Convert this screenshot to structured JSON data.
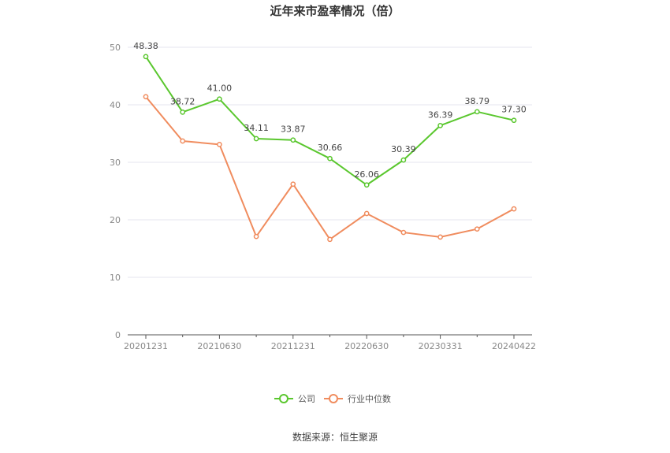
{
  "chart_data": {
    "type": "line",
    "title": "近年来市盈率情况（倍）",
    "x": [
      "20201231",
      "20210331",
      "20210630",
      "20210930",
      "20211231",
      "20220331",
      "20220630",
      "20220930",
      "20230331",
      "20230630",
      "20240422"
    ],
    "x_tick_labels": [
      "20201231",
      "20210630",
      "20211231",
      "20220630",
      "20230331",
      "20240422"
    ],
    "ylim": [
      0,
      50
    ],
    "y_ticks": [
      0,
      10,
      20,
      30,
      40,
      50
    ],
    "grid": true,
    "legend_position": "bottom",
    "series": [
      {
        "name": "公司",
        "color": "#5ac72e",
        "values": [
          48.38,
          38.72,
          41.0,
          34.11,
          33.87,
          30.66,
          26.06,
          30.39,
          36.39,
          38.79,
          37.3
        ],
        "data_labels": [
          "48.38",
          "38.72",
          "41.00",
          "34.11",
          "33.87",
          "30.66",
          "26.06",
          "30.39",
          "36.39",
          "38.79",
          "37.30"
        ]
      },
      {
        "name": "行业中位数",
        "color": "#f08c5e",
        "values": [
          41.4,
          33.7,
          33.1,
          17.1,
          26.2,
          16.6,
          21.1,
          17.8,
          17.0,
          18.4,
          21.9
        ]
      }
    ]
  },
  "source_text": "数据来源：恒生聚源"
}
